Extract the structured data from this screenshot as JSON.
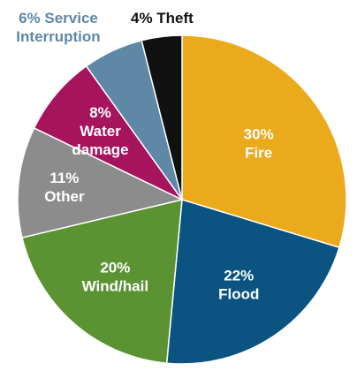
{
  "chart_data": {
    "type": "pie",
    "start_angle_deg": 0,
    "direction": "clockwise",
    "slices": [
      {
        "label_value": "30%",
        "label_name": "Fire",
        "value": 30,
        "color": "#EAAA1B",
        "text_color": "#ffffff",
        "label_position": "inside"
      },
      {
        "label_value": "22%",
        "label_name": "Flood",
        "value": 22,
        "color": "#0B5380",
        "text_color": "#ffffff",
        "label_position": "inside"
      },
      {
        "label_value": "20%",
        "label_name": "Wind/hail",
        "value": 20,
        "color": "#5B9232",
        "text_color": "#ffffff",
        "label_position": "inside"
      },
      {
        "label_value": "11%",
        "label_name": "Other",
        "value": 11,
        "color": "#8C8C8C",
        "text_color": "#ffffff",
        "label_position": "inside"
      },
      {
        "label_value": "8%",
        "label_name": "Water damage",
        "value": 8,
        "color": "#A5145C",
        "text_color": "#ffffff",
        "label_position": "inside"
      },
      {
        "label_value": "6%",
        "label_name": "Service Interruption",
        "value": 6,
        "color": "#5E88A6",
        "text_color": "#5E88A6",
        "label_position": "outside"
      },
      {
        "label_value": "4%",
        "label_name": "Theft",
        "value": 4,
        "color": "#111111",
        "text_color": "#111111",
        "label_position": "outside"
      }
    ]
  }
}
